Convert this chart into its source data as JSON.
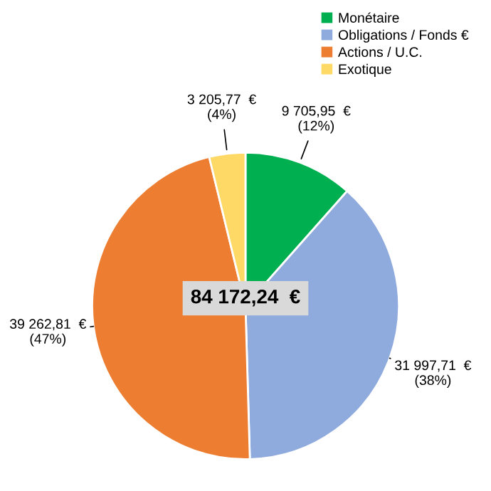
{
  "chart_data": {
    "type": "pie",
    "categories": [
      "Monétaire",
      "Obligations / Fonds €",
      "Actions / U.C.",
      "Exotique"
    ],
    "values": [
      9705.95,
      31997.71,
      39262.81,
      3205.77
    ],
    "colors": [
      "#00b050",
      "#8faadc",
      "#ed7d31",
      "#ffd966"
    ],
    "value_labels": [
      "9 705,95  €\n(12%)",
      "31 997,71  €\n(38%)",
      "39 262,81  €\n(47%)",
      "3 205,77  €\n(4%)"
    ],
    "annotations": [
      "84 172,24  €"
    ],
    "legend": "top right"
  }
}
